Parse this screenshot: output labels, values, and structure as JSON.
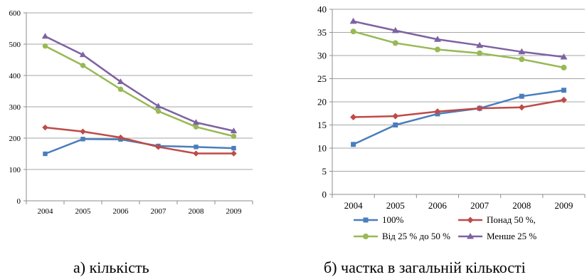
{
  "chart_data": [
    {
      "type": "line",
      "caption": "а) кількість",
      "categories": [
        "2004",
        "2005",
        "2006",
        "2007",
        "2008",
        "2009"
      ],
      "ylim": [
        0,
        600
      ],
      "yticks": [
        0,
        100,
        200,
        300,
        400,
        500,
        600
      ],
      "grid": "horizontal",
      "series": [
        {
          "key": "s100",
          "values": [
            150,
            197,
            196,
            175,
            172,
            168
          ],
          "color": "#4a7ebb",
          "marker": "square"
        },
        {
          "key": "s50",
          "values": [
            234,
            221,
            202,
            172,
            151,
            151
          ],
          "color": "#be4b48",
          "marker": "diamond"
        },
        {
          "key": "s25_50",
          "values": [
            494,
            432,
            356,
            286,
            236,
            206
          ],
          "color": "#98b954",
          "marker": "circle"
        },
        {
          "key": "s25",
          "values": [
            525,
            466,
            380,
            302,
            250,
            223
          ],
          "color": "#7e62a1",
          "marker": "triangle"
        }
      ]
    },
    {
      "type": "line",
      "caption": "б) частка в загальній кількості",
      "categories": [
        "2004",
        "2005",
        "2006",
        "2007",
        "2008",
        "2009"
      ],
      "ylim": [
        0,
        40
      ],
      "yticks": [
        0,
        5,
        10,
        15,
        20,
        25,
        30,
        35,
        40
      ],
      "grid": "horizontal",
      "legend_position": "bottom",
      "series": [
        {
          "key": "s100",
          "name": "100%",
          "values": [
            10.8,
            15.0,
            17.4,
            18.6,
            21.2,
            22.5
          ],
          "color": "#4a7ebb",
          "marker": "square"
        },
        {
          "key": "s50",
          "name": "Понад 50 %,",
          "values": [
            16.7,
            16.9,
            17.9,
            18.6,
            18.8,
            20.4
          ],
          "color": "#be4b48",
          "marker": "diamond"
        },
        {
          "key": "s25_50",
          "name": "Від 25 % до 50 %",
          "values": [
            35.2,
            32.7,
            31.3,
            30.5,
            29.2,
            27.4
          ],
          "color": "#98b954",
          "marker": "circle"
        },
        {
          "key": "s25",
          "name": "Менше 25 %",
          "values": [
            37.4,
            35.4,
            33.5,
            32.2,
            30.8,
            29.7
          ],
          "color": "#7e62a1",
          "marker": "triangle"
        }
      ]
    }
  ]
}
